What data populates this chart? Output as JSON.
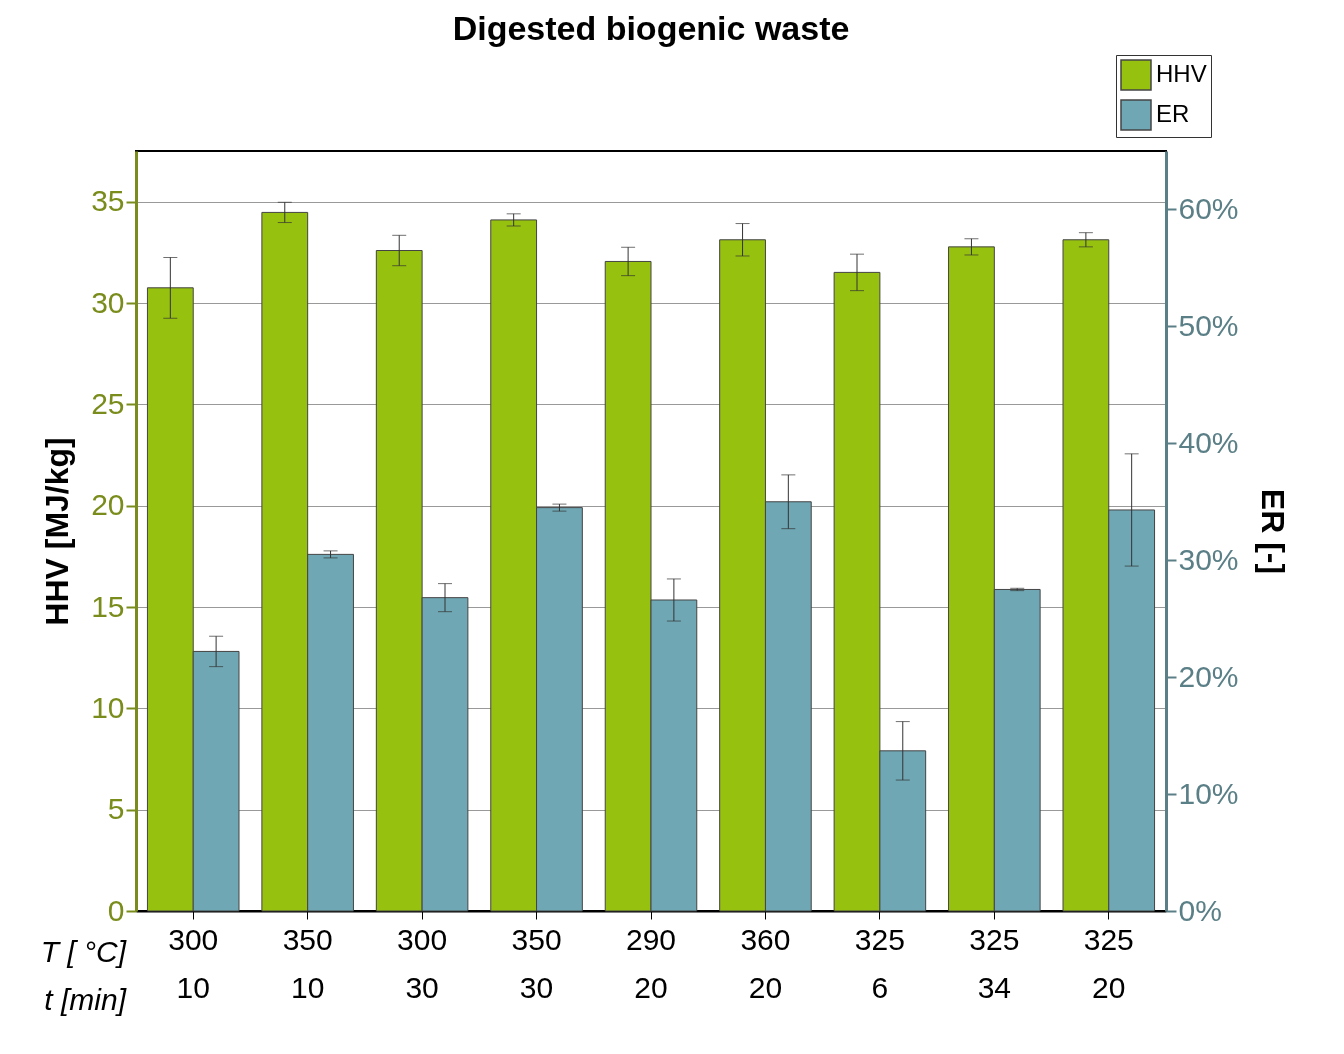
{
  "chart_data": {
    "type": "bar",
    "title": "Digested biogenic waste",
    "ylabel": "HHV [MJ/kg]",
    "y2label": "ER [-]",
    "categories": [
      "300\n10",
      "350\n10",
      "300\n30",
      "350\n30",
      "290\n20",
      "360\n20",
      "325\n6",
      "325\n34",
      "325\n20"
    ],
    "series": [
      {
        "name": "HHV",
        "color": "#97c10f",
        "values": [
          30.75,
          34.47,
          32.59,
          34.1,
          32.05,
          33.12,
          31.51,
          32.77,
          33.12
        ],
        "errors": [
          1.5,
          0.5,
          0.75,
          0.3,
          0.7,
          0.8,
          0.9,
          0.4,
          0.35
        ]
      },
      {
        "name": "ER",
        "color": "#6fa8b4",
        "axis": "y2",
        "values": [
          22.2,
          30.5,
          26.8,
          34.5,
          26.6,
          35.0,
          13.7,
          27.5,
          34.3
        ],
        "errors": [
          1.3,
          0.3,
          1.2,
          0.3,
          1.8,
          2.3,
          2.5,
          0.1,
          4.8
        ]
      }
    ],
    "ylim": [
      0,
      37.5
    ],
    "yticks": [
      0,
      5,
      10,
      15,
      20,
      25,
      30,
      35
    ],
    "y2lim": [
      0,
      65
    ],
    "y2ticks": [
      {
        "value": 0,
        "label": "0%"
      },
      {
        "value": 10,
        "label": "10%"
      },
      {
        "value": 20,
        "label": "20%"
      },
      {
        "value": 30,
        "label": "30%"
      },
      {
        "value": 40,
        "label": "40%"
      },
      {
        "value": 50,
        "label": "50%"
      },
      {
        "value": 60,
        "label": "60%"
      }
    ],
    "annotations": [
      "T [ °C]",
      "t [min]"
    ],
    "grid": "y",
    "legend": "top right"
  }
}
